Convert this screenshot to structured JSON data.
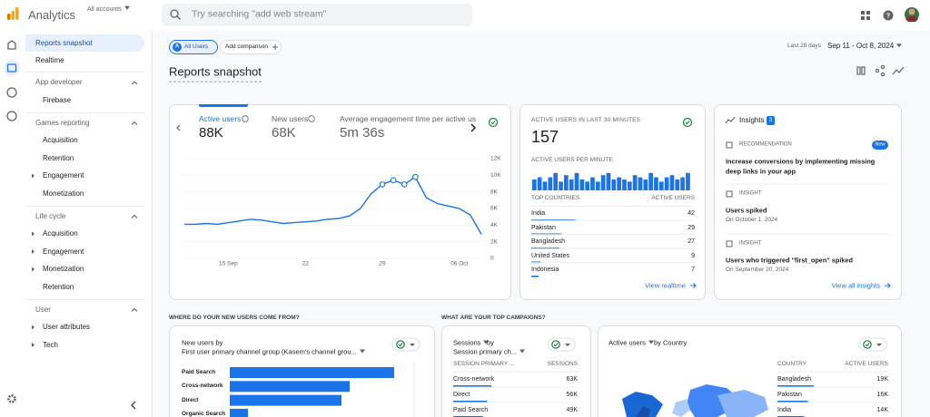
{
  "header": {
    "product": "Analytics",
    "account": "All accounts",
    "search": "Try searching \"add web stream\""
  },
  "sidebar": {
    "top": [
      "Reports snapshot",
      "Realtime"
    ],
    "sections": [
      {
        "title": "App developer",
        "items": [
          {
            "label": "Firebase",
            "expandable": false
          }
        ]
      },
      {
        "title": "Games reporting",
        "items": [
          {
            "label": "Acquisition",
            "expandable": false
          },
          {
            "label": "Retention",
            "expandable": false
          },
          {
            "label": "Engagement",
            "expandable": true
          },
          {
            "label": "Monetization",
            "expandable": false
          }
        ]
      },
      {
        "title": "Life cycle",
        "items": [
          {
            "label": "Acquisition",
            "expandable": true
          },
          {
            "label": "Engagement",
            "expandable": true
          },
          {
            "label": "Monetization",
            "expandable": true
          },
          {
            "label": "Retention",
            "expandable": false
          }
        ]
      },
      {
        "title": "User",
        "items": [
          {
            "label": "User attributes",
            "expandable": true
          },
          {
            "label": "Tech",
            "expandable": true
          }
        ]
      }
    ]
  },
  "toolbar": {
    "segment_badge": "A",
    "segment": "All Users",
    "add_comparison": "Add comparison",
    "date_label": "Last 28 days",
    "date_range": "Sep 11 - Oct 8, 2024"
  },
  "title": "Reports snapshot",
  "overview": {
    "tabs": [
      {
        "label": "Active users",
        "value": "88K"
      },
      {
        "label": "New users",
        "value": "68K"
      },
      {
        "label": "Average engagement time per active us",
        "value": "5m 36s"
      }
    ],
    "chart": {
      "type": "line",
      "categories": [
        null,
        null,
        null,
        null,
        "15 Sep",
        null,
        null,
        null,
        null,
        null,
        null,
        "22",
        null,
        null,
        null,
        null,
        null,
        null,
        "29",
        null,
        null,
        null,
        null,
        null,
        null,
        "06 Oct",
        null,
        null
      ],
      "values": [
        4100,
        4100,
        4200,
        4100,
        4300,
        4500,
        4700,
        4600,
        4400,
        4200,
        4300,
        4400,
        4500,
        4700,
        4800,
        5100,
        6000,
        7800,
        8900,
        9400,
        8900,
        9800,
        7300,
        6600,
        6300,
        6000,
        5200,
        2900
      ],
      "color": "#1a73e8",
      "ylim": [
        0,
        12000
      ],
      "yticks": [
        0,
        {
          "value": 2000,
          "label": "2K"
        },
        {
          "value": 4000,
          "label": "4K"
        },
        {
          "value": 6000,
          "label": "6K"
        },
        {
          "value": 8000,
          "label": "8K"
        },
        {
          "value": 10000,
          "label": "10K"
        },
        {
          "value": 12000,
          "label": "12K"
        }
      ],
      "grid": true
    }
  },
  "realtime": {
    "title": "ACTIVE USERS IN LAST 30 MINUTES",
    "value": "157",
    "subtitle": "ACTIVE USERS PER MINUTE",
    "chart": {
      "type": "bar",
      "values": [
        5,
        6,
        4,
        6,
        8,
        4,
        7,
        5,
        8,
        5,
        4,
        6,
        4,
        7,
        8,
        5,
        6,
        5,
        4,
        7,
        6,
        5,
        8,
        6,
        4,
        6,
        7,
        5,
        6,
        8
      ],
      "color": "#1a73e8"
    },
    "columns": [
      "TOP COUNTRIES",
      "ACTIVE USERS"
    ],
    "rows": [
      [
        "India",
        42
      ],
      [
        "Pakistan",
        29
      ],
      [
        "Bangladesh",
        27
      ],
      [
        "United States",
        9
      ],
      [
        "Indonesia",
        7
      ]
    ],
    "link": "View realtime"
  },
  "insights": {
    "title": "Insights",
    "count": 3,
    "items": [
      {
        "kind": "RECOMMENDATION",
        "badge": "New",
        "text": "Increase conversions by implementing missing deep links in your app"
      },
      {
        "kind": "INSIGHT",
        "text": "Users spiked",
        "date": "On October 1, 2024"
      },
      {
        "kind": "INSIGHT",
        "text": "Users who triggered \"first_open\" spiked",
        "date": "On September 20, 2024"
      }
    ],
    "link": "View all insights"
  },
  "new_users": {
    "heading": "WHERE DO YOUR NEW USERS COME FROM?",
    "metric": "New users by",
    "dimension": "First user primary channel group (Kasem's channel grou...",
    "chart": {
      "type": "bar",
      "orientation": "horizontal",
      "categories": [
        "Paid Search",
        "Cross-network",
        "Direct",
        "Organic Search"
      ],
      "values": [
        18100,
        13200,
        12300,
        2000
      ],
      "color": "#1a73e8"
    }
  },
  "campaigns": {
    "heading": "WHAT ARE YOUR TOP CAMPAIGNS?",
    "metric": "Sessions",
    "by": "by",
    "dimension": "Session primary ch...",
    "columns": [
      "SESSION PRIMARY ...",
      "SESSIONS"
    ],
    "rows": [
      [
        "Cross-network",
        {
          "value": 63000,
          "label": "63K"
        }
      ],
      [
        "Direct",
        {
          "value": 56000,
          "label": "56K"
        }
      ],
      [
        "Paid Search",
        {
          "value": 49000,
          "label": "49K"
        }
      ]
    ]
  },
  "countries": {
    "metric": "Active users",
    "dimension": "by Country",
    "columns": [
      "COUNTRY",
      "ACTIVE USERS"
    ],
    "rows": [
      [
        "Bangladesh",
        {
          "value": 19000,
          "label": "19K"
        }
      ],
      [
        "Pakistan",
        {
          "value": 16000,
          "label": "16K"
        }
      ],
      [
        "India",
        {
          "value": 14000,
          "label": "14K"
        }
      ]
    ]
  }
}
